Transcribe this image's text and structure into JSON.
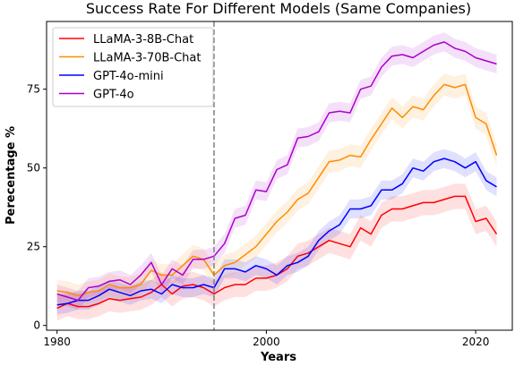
{
  "chart_data": {
    "type": "line",
    "title": "Success Rate For Different Models (Same Companies)",
    "xlabel": "Years",
    "ylabel": "Perecentage %",
    "xlim": [
      1979,
      2023.5
    ],
    "ylim": [
      -1.5,
      96.5
    ],
    "xticks": [
      1980,
      2000,
      2020
    ],
    "yticks": [
      0,
      25,
      50,
      75
    ],
    "grid": false,
    "legend_position": "top-left",
    "vline": {
      "x": 1995,
      "style": "dashed",
      "color": "#808080"
    },
    "x": [
      1980,
      1981,
      1982,
      1983,
      1984,
      1985,
      1986,
      1987,
      1988,
      1989,
      1990,
      1991,
      1992,
      1993,
      1994,
      1995,
      1996,
      1997,
      1998,
      1999,
      2000,
      2001,
      2002,
      2003,
      2004,
      2005,
      2006,
      2007,
      2008,
      2009,
      2010,
      2011,
      2012,
      2013,
      2014,
      2015,
      2016,
      2017,
      2018,
      2019,
      2020,
      2021,
      2022
    ],
    "series": [
      {
        "name": "LLaMA-3-8B-Chat",
        "color": "#ff0000",
        "band": 4,
        "values": [
          5.5,
          7,
          6,
          6,
          7,
          8.5,
          8,
          8.5,
          9,
          10.5,
          13,
          10,
          12.5,
          13,
          12,
          10,
          12,
          13,
          13,
          15,
          15,
          16,
          18,
          22,
          23,
          25,
          27,
          26,
          25,
          31,
          29,
          35,
          37,
          37,
          38,
          39,
          39,
          40,
          41,
          41,
          33,
          34,
          29
        ]
      },
      {
        "name": "LLaMA-3-70B-Chat",
        "color": "#ff8c00",
        "band": 3.5,
        "values": [
          11,
          10.5,
          9.5,
          10.5,
          11,
          13,
          12,
          12,
          13,
          17.5,
          16,
          16,
          19,
          22,
          21,
          16,
          19,
          20,
          22.5,
          25,
          29,
          33,
          36,
          40,
          42,
          47,
          52,
          52.5,
          54,
          53.5,
          59,
          64,
          69,
          66,
          69.5,
          68.5,
          73,
          76.5,
          75.5,
          76.5,
          66,
          64,
          54
        ]
      },
      {
        "name": "GPT-4o-mini",
        "color": "#0000ff",
        "band": 3,
        "values": [
          6.5,
          7,
          8,
          8,
          9.5,
          11.5,
          10.5,
          9.5,
          11,
          11.5,
          10,
          13,
          12,
          12,
          13,
          12,
          18,
          18,
          17,
          19,
          18,
          16,
          19,
          20,
          22,
          27,
          30,
          32,
          37,
          37,
          38,
          43,
          43,
          45,
          50,
          49,
          52,
          53,
          52,
          50,
          52,
          46,
          44
        ]
      },
      {
        "name": "GPT-4o",
        "color": "#aa00cc",
        "band": 3,
        "values": [
          10,
          9,
          8,
          12,
          12.5,
          14,
          14.5,
          13,
          16,
          20,
          13,
          18,
          16,
          21,
          21,
          22,
          26,
          34,
          35,
          43,
          42.5,
          49.5,
          51,
          59.5,
          60,
          61.5,
          67.5,
          68,
          67.5,
          75,
          76,
          82,
          85.5,
          86,
          85,
          87,
          89,
          90,
          88,
          87,
          85,
          84,
          83
        ]
      }
    ]
  }
}
